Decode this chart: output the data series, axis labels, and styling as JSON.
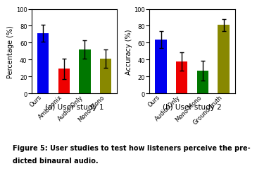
{
  "study1": {
    "categories": [
      "Ours",
      "Ambisonix",
      "Audio-Only",
      "Mono-Mono"
    ],
    "values": [
      71,
      29,
      52,
      41
    ],
    "errors": [
      10,
      12,
      11,
      11
    ],
    "colors": [
      "#0000ee",
      "#ee0000",
      "#007700",
      "#888800"
    ],
    "ylabel": "Percentage (%)",
    "ylim": [
      0,
      100
    ],
    "yticks": [
      0,
      20,
      40,
      60,
      80,
      100
    ],
    "subtitle": "(a) User study 1"
  },
  "study2": {
    "categories": [
      "Ours",
      "Audio-Only",
      "Mono-Mono",
      "Ground-truth"
    ],
    "values": [
      64,
      38,
      27,
      81
    ],
    "errors": [
      10,
      11,
      12,
      7
    ],
    "colors": [
      "#0000ee",
      "#ee0000",
      "#007700",
      "#888800"
    ],
    "ylabel": "Accuracy (%)",
    "ylim": [
      0,
      100
    ],
    "yticks": [
      0,
      20,
      40,
      60,
      80,
      100
    ],
    "subtitle": "(b) User study 2"
  },
  "caption_line1": "Figure 5: User studies to test how listeners perceive the pre-",
  "caption_line2": "dicted binaural audio.",
  "caption_fontsize": 7.0,
  "subtitle_fontsize": 7.5,
  "tick_fontsize": 6.0,
  "ylabel_fontsize": 7.0,
  "bar_width": 0.55,
  "ecolor": "#000000"
}
